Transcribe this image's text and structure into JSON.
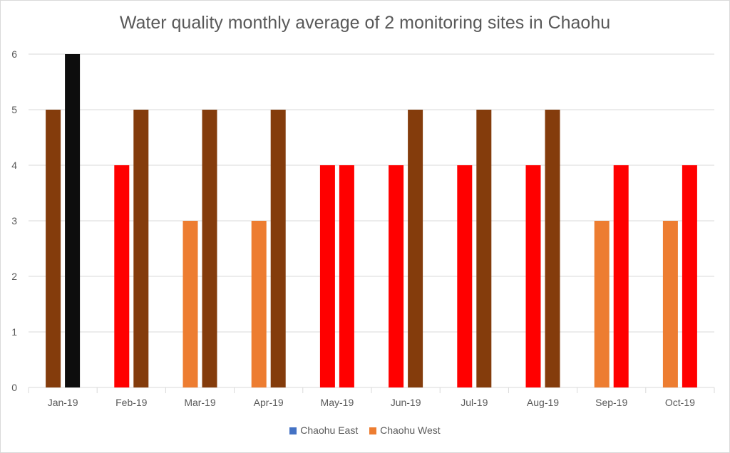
{
  "chart_data": {
    "type": "bar",
    "title": "Water quality monthly average of 2 monitoring sites in Chaohu",
    "xlabel": "",
    "ylabel": "",
    "ylim": [
      0,
      6
    ],
    "yticks": [
      "0",
      "1",
      "2",
      "3",
      "4",
      "5",
      "6"
    ],
    "categories": [
      "Jan-19",
      "Feb-19",
      "Mar-19",
      "Apr-19",
      "May-19",
      "Jun-19",
      "Jul-19",
      "Aug-19",
      "Sep-19",
      "Oct-19"
    ],
    "series": [
      {
        "name": "Chaohu East",
        "legend_color": "#4472c4",
        "values": [
          5,
          4,
          3,
          3,
          4,
          4,
          4,
          4,
          3,
          3
        ],
        "bar_colors": [
          "#843c0c",
          "#ff0000",
          "#ed7d31",
          "#ed7d31",
          "#ff0000",
          "#ff0000",
          "#ff0000",
          "#ff0000",
          "#ed7d31",
          "#ed7d31"
        ]
      },
      {
        "name": "Chaohu West",
        "legend_color": "#ed7d31",
        "values": [
          6,
          5,
          5,
          5,
          4,
          5,
          5,
          5,
          4,
          4
        ],
        "bar_colors": [
          "#0d0d0d",
          "#843c0c",
          "#843c0c",
          "#843c0c",
          "#ff0000",
          "#843c0c",
          "#843c0c",
          "#843c0c",
          "#ff0000",
          "#ff0000"
        ]
      }
    ],
    "grid": true,
    "legend_position": "bottom"
  }
}
